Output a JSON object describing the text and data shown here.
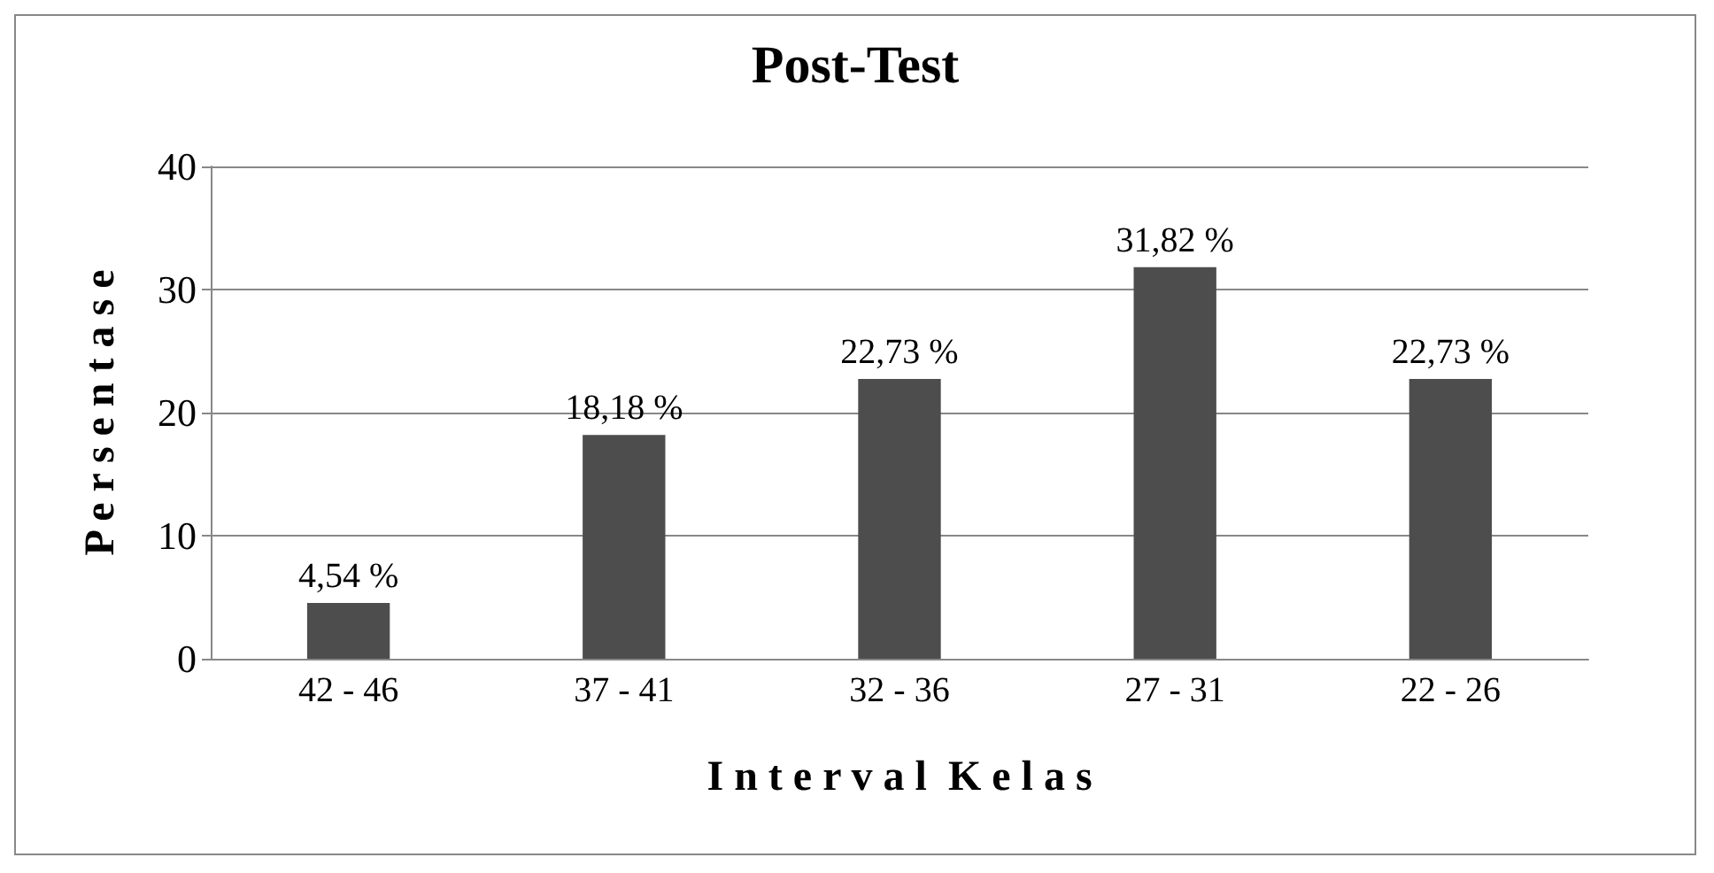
{
  "chart_data": {
    "type": "bar",
    "title": "Post-Test",
    "xlabel": "I n t e r v a l  K e l a s",
    "ylabel": "P e r s e n t a s e",
    "categories": [
      "42 - 46",
      "37 - 41",
      "32 - 36",
      "27 - 31",
      "22 - 26"
    ],
    "values": [
      4.54,
      18.18,
      22.73,
      31.82,
      22.73
    ],
    "value_labels": [
      "4,54 %",
      "18,18 %",
      "22,73 %",
      "31,82 %",
      "22,73 %"
    ],
    "color": "#4d4d4d",
    "ylim": [
      0,
      40
    ],
    "yticks": [
      0,
      10,
      20,
      30,
      40
    ],
    "grid": "y"
  }
}
